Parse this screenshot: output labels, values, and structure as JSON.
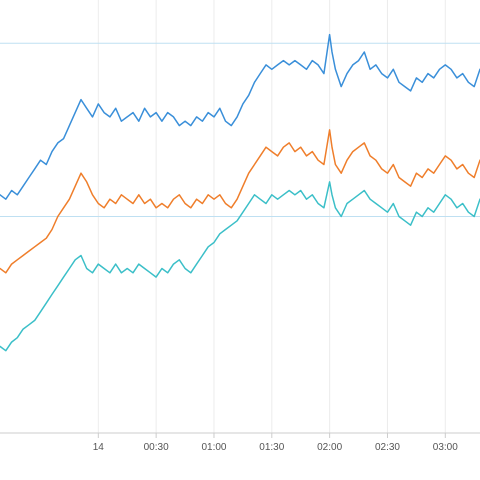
{
  "chart_data": {
    "type": "line",
    "x_tick_labels": [
      "14",
      "00:30",
      "01:00",
      "01:30",
      "02:00",
      "02:30",
      "03:00"
    ],
    "x_tick_hours": [
      0,
      0.5,
      1.0,
      1.5,
      2.0,
      2.5,
      3.0
    ],
    "xlim": [
      -0.85,
      3.3
    ],
    "ylim": [
      0,
      100
    ],
    "grid": "vertical",
    "reference_lines": [
      90,
      50
    ],
    "colors": {
      "blue": "#3a8fd9",
      "orange": "#ef7e2b",
      "teal": "#3bbfc8",
      "reference": "#bfe0f2",
      "grid": "#ececec",
      "axis": "#cccccc"
    },
    "x": [
      -0.85,
      -0.8,
      -0.75,
      -0.7,
      -0.65,
      -0.6,
      -0.55,
      -0.5,
      -0.45,
      -0.4,
      -0.35,
      -0.3,
      -0.25,
      -0.2,
      -0.15,
      -0.1,
      -0.05,
      0.0,
      0.05,
      0.1,
      0.15,
      0.2,
      0.25,
      0.3,
      0.35,
      0.4,
      0.45,
      0.5,
      0.55,
      0.6,
      0.65,
      0.7,
      0.75,
      0.8,
      0.85,
      0.9,
      0.95,
      1.0,
      1.05,
      1.1,
      1.15,
      1.2,
      1.25,
      1.3,
      1.35,
      1.4,
      1.45,
      1.5,
      1.55,
      1.6,
      1.65,
      1.7,
      1.75,
      1.8,
      1.85,
      1.9,
      1.95,
      2.0,
      2.02,
      2.05,
      2.1,
      2.15,
      2.2,
      2.25,
      2.3,
      2.35,
      2.4,
      2.45,
      2.5,
      2.55,
      2.6,
      2.65,
      2.7,
      2.75,
      2.8,
      2.85,
      2.9,
      2.95,
      3.0,
      3.05,
      3.1,
      3.15,
      3.2,
      3.25,
      3.3
    ],
    "series": [
      {
        "color": "blue",
        "values": [
          55,
          54,
          56,
          55,
          57,
          59,
          61,
          63,
          62,
          65,
          67,
          68,
          71,
          74,
          77,
          75,
          73,
          76,
          74,
          73,
          75,
          72,
          73,
          74,
          72,
          75,
          73,
          74,
          72,
          74,
          73,
          71,
          72,
          71,
          73,
          72,
          74,
          73,
          75,
          72,
          71,
          73,
          76,
          78,
          81,
          83,
          85,
          84,
          85,
          86,
          85,
          86,
          85,
          84,
          86,
          85,
          83,
          92,
          88,
          84,
          80,
          83,
          85,
          86,
          88,
          84,
          85,
          83,
          82,
          84,
          81,
          80,
          79,
          82,
          81,
          83,
          82,
          84,
          85,
          84,
          82,
          83,
          81,
          80,
          84
        ]
      },
      {
        "color": "orange",
        "values": [
          38,
          37,
          39,
          40,
          41,
          42,
          43,
          44,
          45,
          47,
          50,
          52,
          54,
          57,
          60,
          58,
          55,
          53,
          52,
          54,
          53,
          55,
          54,
          53,
          55,
          53,
          54,
          52,
          53,
          52,
          54,
          55,
          53,
          52,
          54,
          53,
          55,
          54,
          55,
          53,
          52,
          54,
          57,
          60,
          62,
          64,
          66,
          65,
          64,
          66,
          67,
          65,
          66,
          64,
          65,
          63,
          62,
          70,
          66,
          62,
          60,
          63,
          65,
          66,
          67,
          64,
          63,
          61,
          60,
          62,
          59,
          58,
          57,
          60,
          59,
          61,
          60,
          62,
          64,
          63,
          61,
          62,
          60,
          59,
          63
        ]
      },
      {
        "color": "teal",
        "values": [
          20,
          19,
          21,
          22,
          24,
          25,
          26,
          28,
          30,
          32,
          34,
          36,
          38,
          40,
          41,
          38,
          37,
          39,
          38,
          37,
          39,
          37,
          38,
          37,
          39,
          38,
          37,
          36,
          38,
          37,
          39,
          40,
          38,
          37,
          39,
          41,
          43,
          44,
          46,
          47,
          48,
          49,
          51,
          53,
          55,
          54,
          53,
          55,
          54,
          55,
          56,
          55,
          56,
          54,
          55,
          53,
          52,
          58,
          55,
          52,
          50,
          53,
          54,
          55,
          56,
          54,
          53,
          52,
          51,
          53,
          50,
          49,
          48,
          51,
          50,
          52,
          51,
          53,
          55,
          54,
          52,
          53,
          51,
          50,
          54
        ]
      }
    ]
  }
}
